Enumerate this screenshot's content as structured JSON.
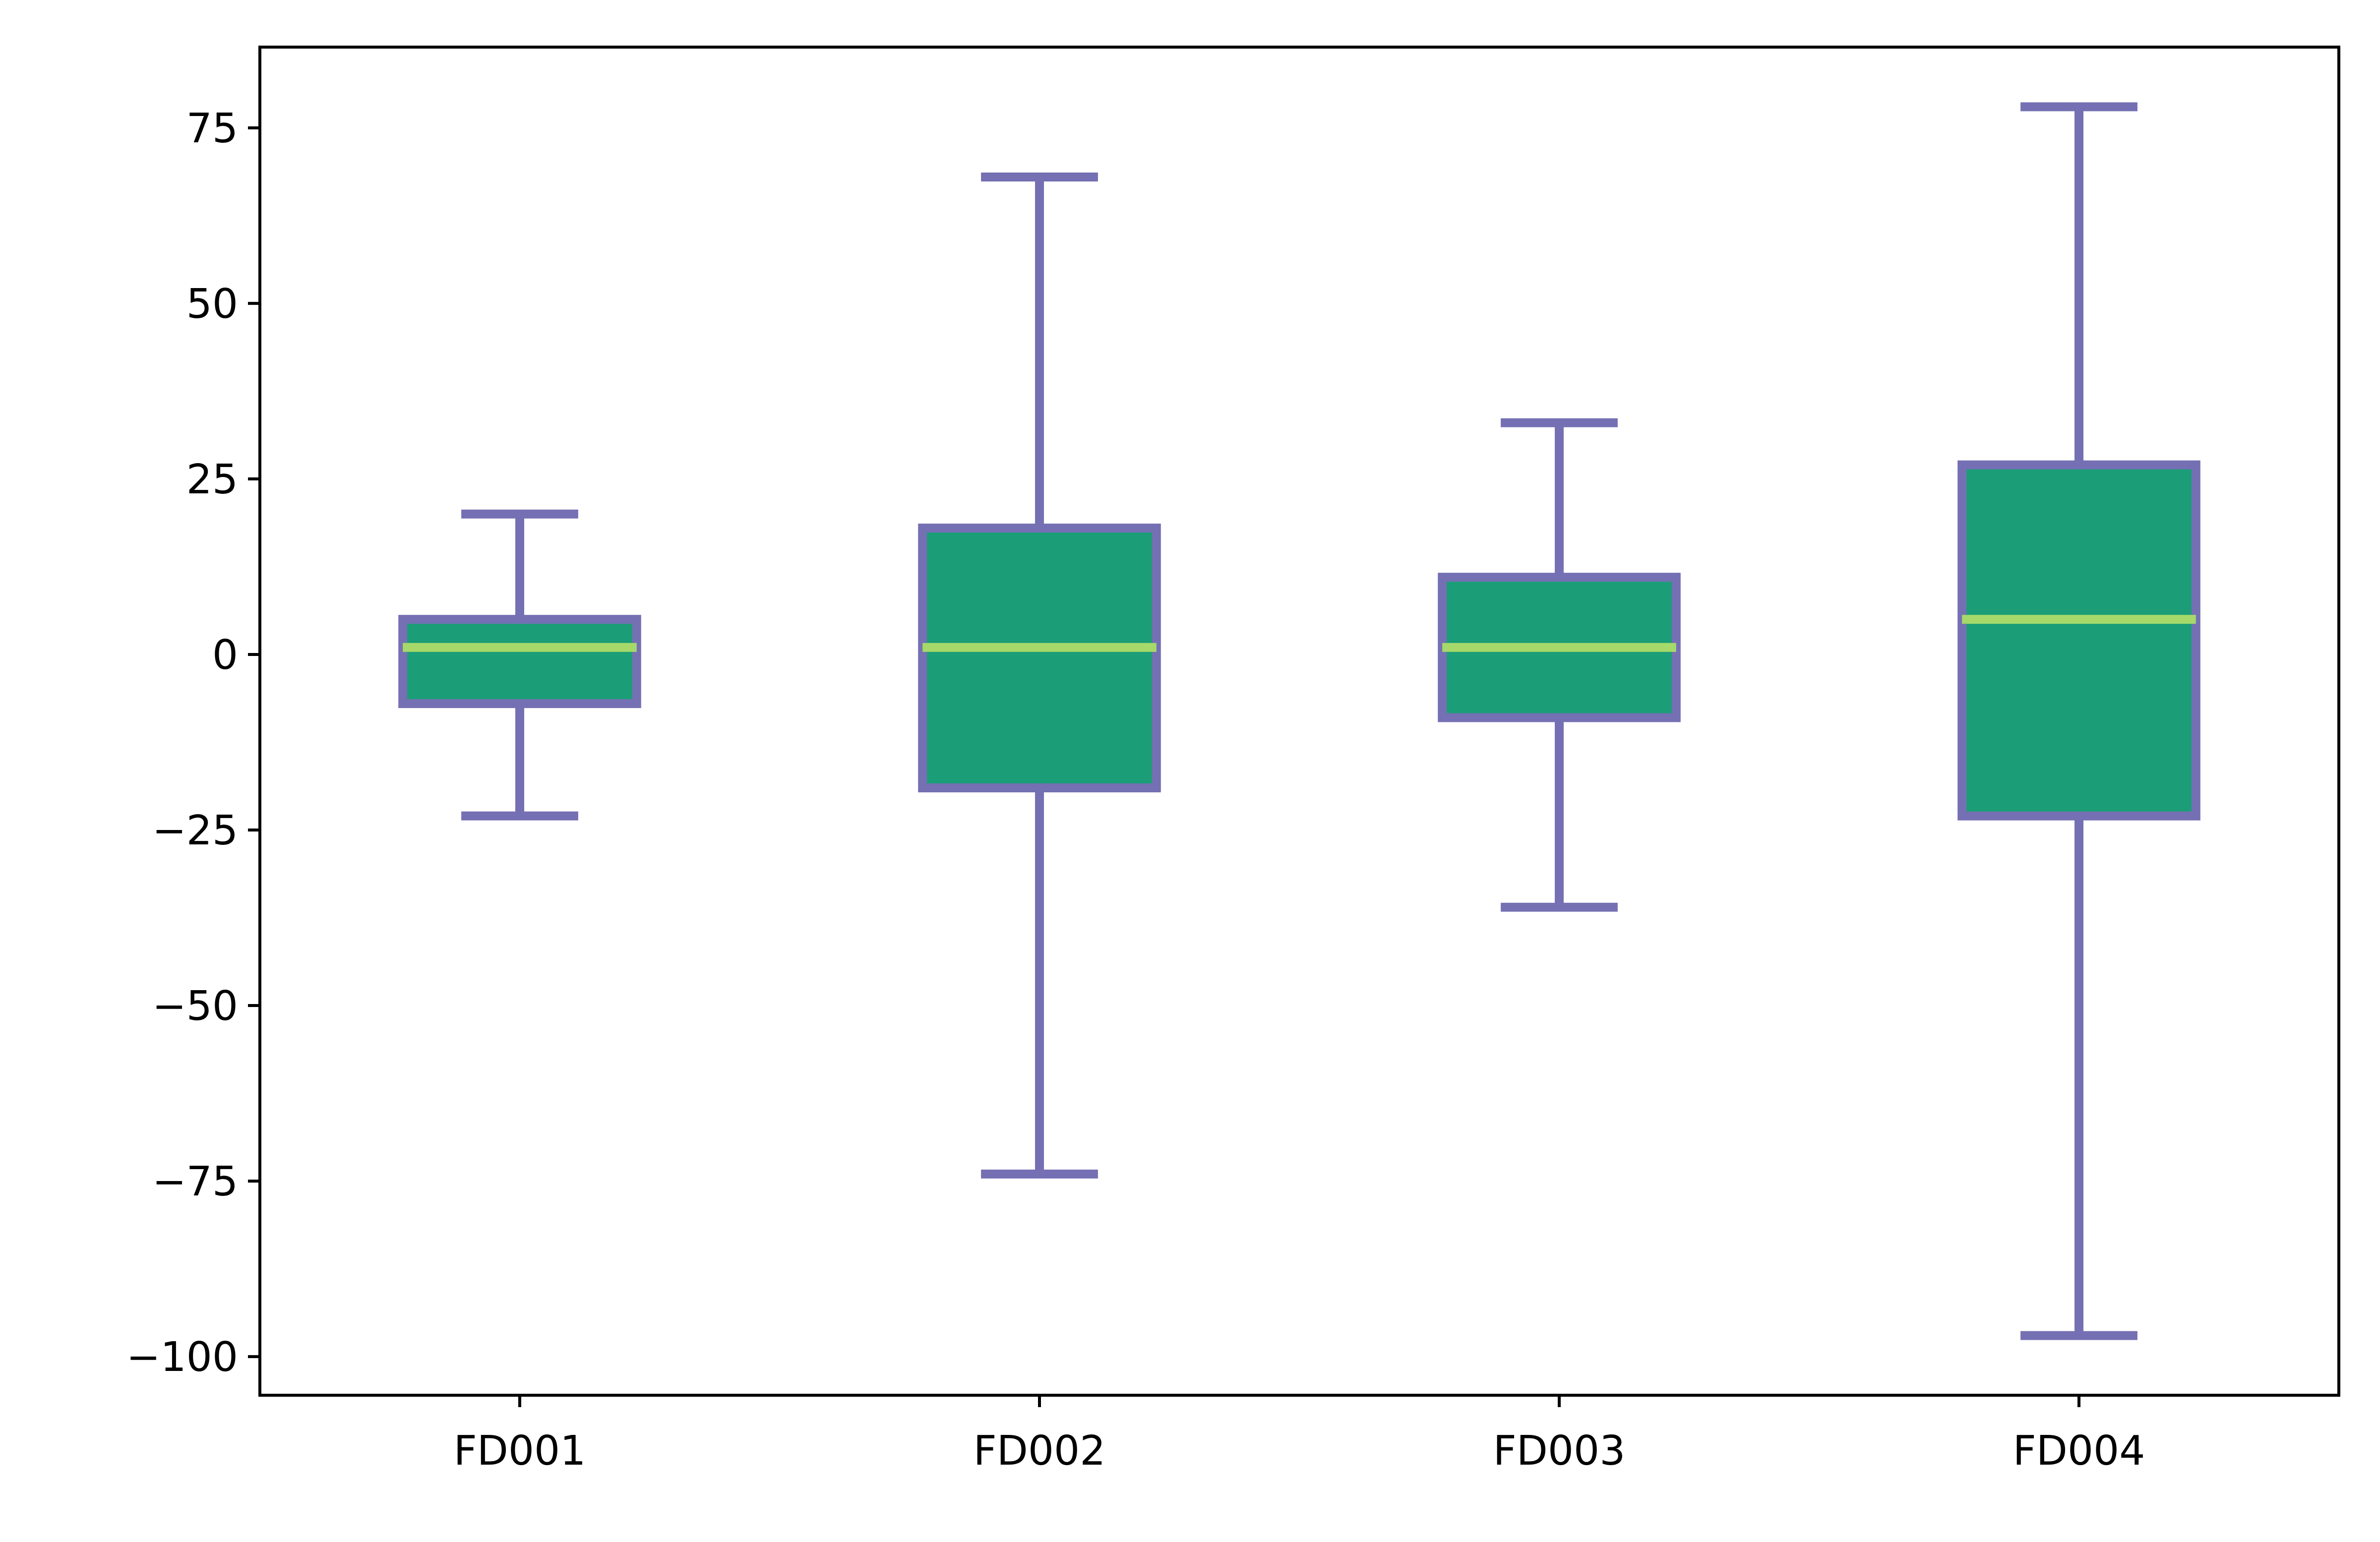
{
  "chart_data": {
    "type": "box",
    "categories": [
      "FD001",
      "FD002",
      "FD003",
      "FD004"
    ],
    "boxes": [
      {
        "category": "FD001",
        "whisker_low": -23,
        "q1": -7,
        "median": 1,
        "q3": 5,
        "whisker_high": 20
      },
      {
        "category": "FD002",
        "whisker_low": -74,
        "q1": -19,
        "median": 1,
        "q3": 18,
        "whisker_high": 68
      },
      {
        "category": "FD003",
        "whisker_low": -36,
        "q1": -9,
        "median": 1,
        "q3": 11,
        "whisker_high": 33
      },
      {
        "category": "FD004",
        "whisker_low": -97,
        "q1": -23,
        "median": 5,
        "q3": 27,
        "whisker_high": 78
      }
    ],
    "yticks": [
      75,
      50,
      25,
      0,
      -25,
      -50,
      -75,
      -100
    ],
    "ytick_labels": [
      "75",
      "50",
      "25",
      "0",
      "−25",
      "−50",
      "−75",
      "−100"
    ],
    "ylim": [
      -105.5,
      86.5
    ],
    "title": "",
    "xlabel": "",
    "ylabel": "",
    "grid": false,
    "colors": {
      "box_fill": "#1b9e77",
      "box_edge": "#7570b3",
      "median": "#a6d96a",
      "axes": "#000000"
    }
  }
}
